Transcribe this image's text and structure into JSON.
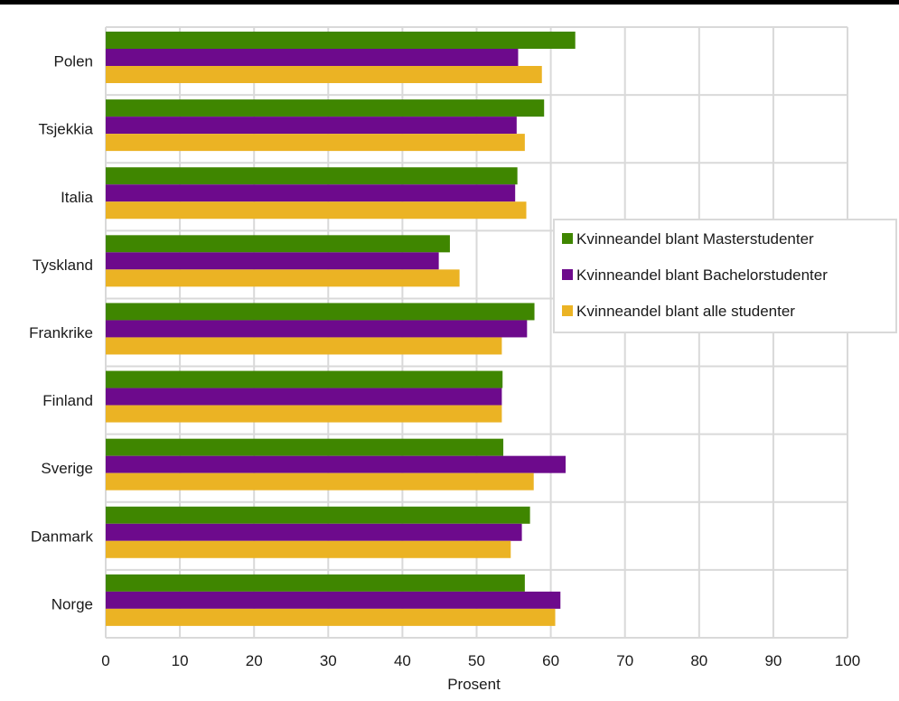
{
  "chart_data": {
    "type": "bar",
    "orientation": "horizontal",
    "categories": [
      "Polen",
      "Tsjekkia",
      "Italia",
      "Tyskland",
      "Frankrike",
      "Finland",
      "Sverige",
      "Danmark",
      "Norge"
    ],
    "series": [
      {
        "name": "Kvinneandel blant Masterstudenter",
        "color": "#3f8600",
        "values": [
          63.3,
          59.1,
          55.5,
          46.4,
          57.8,
          53.5,
          53.6,
          57.2,
          56.5
        ]
      },
      {
        "name": "Kvinneandel blant Bachelorstudenter",
        "color": "#6d0a8c",
        "values": [
          55.6,
          55.4,
          55.2,
          44.9,
          56.8,
          53.4,
          62.0,
          56.1,
          61.3
        ]
      },
      {
        "name": "Kvinneandel blant alle studenter",
        "color": "#ebb324",
        "values": [
          58.8,
          56.5,
          56.7,
          47.7,
          53.4,
          53.4,
          57.7,
          54.6,
          60.6
        ]
      }
    ],
    "xlabel": "Prosent",
    "ylabel": "",
    "xlim": [
      0,
      100
    ],
    "xticks": [
      0,
      10,
      20,
      30,
      40,
      50,
      60,
      70,
      80,
      90,
      100
    ],
    "grid": true,
    "legend_position": "right"
  }
}
